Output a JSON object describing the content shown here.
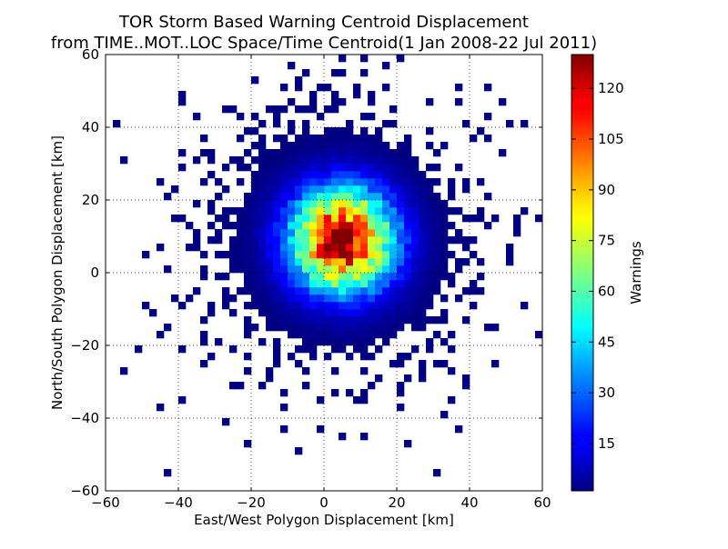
{
  "chart_data": {
    "type": "heatmap",
    "title": "TOR Storm Based Warning Centroid Displacement",
    "subtitle": "from TIME..MOT..LOC Space/Time Centroid(1 Jan 2008-22 Jul 2011)",
    "xlabel": "East/West Polygon Displacement [km]",
    "ylabel": "North/South Polygon Displacement [km]",
    "xlim": [
      -60,
      60
    ],
    "ylim": [
      -60,
      60
    ],
    "x_ticks": [
      -60,
      -40,
      -20,
      0,
      20,
      40,
      60
    ],
    "y_ticks": [
      -60,
      -40,
      -20,
      0,
      20,
      40,
      60
    ],
    "bin_size_km": 2,
    "grid": true,
    "colorbar": {
      "label": "Warnings",
      "min": 1,
      "max": 130,
      "ticks": [
        15,
        30,
        45,
        60,
        75,
        90,
        105,
        120
      ],
      "colormap": "jet"
    },
    "peak": {
      "x": 5,
      "y": 9,
      "value": 130
    },
    "outliers": [
      [
        -57,
        41
      ],
      [
        -55,
        -27
      ],
      [
        -51,
        -21
      ],
      [
        -49,
        5
      ],
      [
        -49,
        -9
      ],
      [
        -45,
        25
      ],
      [
        -45,
        -17
      ],
      [
        -43,
        21
      ],
      [
        -43,
        -15
      ],
      [
        -39,
        49
      ],
      [
        -39,
        47
      ],
      [
        -39,
        29
      ],
      [
        -39,
        -35
      ],
      [
        -37,
        7
      ],
      [
        -37,
        13
      ],
      [
        -37,
        -7
      ],
      [
        -35,
        31
      ],
      [
        -35,
        -5
      ],
      [
        -33,
        25
      ],
      [
        -33,
        -13
      ],
      [
        -31,
        19
      ],
      [
        -31,
        -11
      ],
      [
        -29,
        15
      ],
      [
        -27,
        23
      ],
      [
        -27,
        -41
      ],
      [
        -25,
        45
      ],
      [
        -25,
        -31
      ],
      [
        -23,
        43
      ],
      [
        -19,
        53
      ],
      [
        -17,
        -31
      ],
      [
        -15,
        -29
      ],
      [
        -11,
        51
      ],
      [
        -7,
        51
      ],
      [
        -7,
        -49
      ],
      [
        -3,
        49
      ],
      [
        -1,
        51
      ],
      [
        3,
        55
      ],
      [
        5,
        59
      ],
      [
        9,
        51
      ],
      [
        9,
        49
      ],
      [
        13,
        49
      ],
      [
        21,
        59
      ],
      [
        23,
        -47
      ],
      [
        31,
        -55
      ],
      [
        31,
        -17
      ],
      [
        33,
        -39
      ],
      [
        35,
        -35
      ],
      [
        37,
        51
      ],
      [
        37,
        -43
      ],
      [
        39,
        41
      ],
      [
        41,
        15
      ],
      [
        43,
        15
      ],
      [
        45,
        37
      ],
      [
        45,
        21
      ],
      [
        47,
        15
      ],
      [
        47,
        -15
      ],
      [
        47,
        -25
      ],
      [
        49,
        47
      ],
      [
        51,
        5
      ],
      [
        51,
        41
      ],
      [
        53,
        15
      ],
      [
        55,
        41
      ],
      [
        59,
        15
      ]
    ]
  }
}
